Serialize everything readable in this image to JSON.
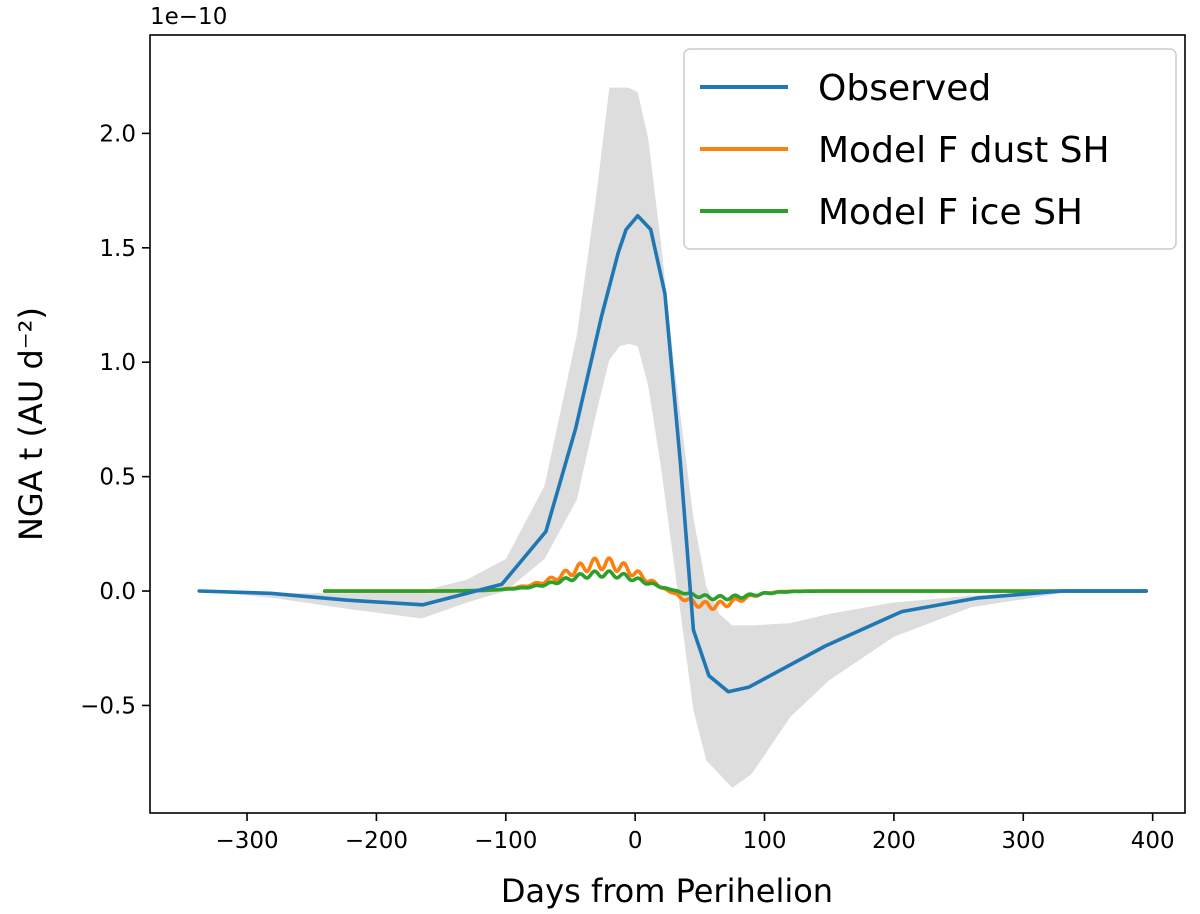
{
  "chart_data": {
    "type": "line",
    "title": "",
    "xlabel": "Days from Perihelion",
    "ylabel": "NGA t (AU d⁻²)",
    "y_offset_text": "1e−10",
    "xlim": [
      -375,
      425
    ],
    "ylim": [
      -0.97,
      2.43
    ],
    "x_ticks": [
      -300,
      -200,
      -100,
      0,
      100,
      200,
      300,
      400
    ],
    "x_tick_labels": [
      "−300",
      "−200",
      "−100",
      "0",
      "100",
      "200",
      "300",
      "400"
    ],
    "y_ticks": [
      -0.5,
      0.0,
      0.5,
      1.0,
      1.5,
      2.0
    ],
    "y_tick_labels": [
      "−0.5",
      "0.0",
      "0.5",
      "1.0",
      "1.5",
      "2.0"
    ],
    "legend_position": "top-right",
    "uncertainty_band": {
      "name": "Observed uncertainty",
      "color": "#dddddd",
      "x": [
        -335,
        -280,
        -220,
        -165,
        -130,
        -100,
        -70,
        -45,
        -30,
        -20,
        -12,
        -5,
        2,
        10,
        20,
        30,
        45,
        55,
        65,
        75,
        90,
        120,
        150,
        200,
        260,
        330,
        395
      ],
      "upper": [
        0.0,
        -0.01,
        -0.01,
        0.0,
        0.05,
        0.14,
        0.46,
        1.12,
        1.73,
        2.2,
        2.2,
        2.2,
        2.18,
        1.98,
        1.52,
        0.99,
        0.32,
        0.02,
        -0.1,
        -0.15,
        -0.15,
        -0.14,
        -0.1,
        -0.05,
        -0.02,
        0.0,
        0.0
      ],
      "lower": [
        0.0,
        -0.03,
        -0.08,
        -0.12,
        -0.05,
        0.0,
        0.14,
        0.4,
        0.78,
        1.01,
        1.07,
        1.08,
        1.07,
        0.9,
        0.54,
        0.12,
        -0.52,
        -0.74,
        -0.8,
        -0.86,
        -0.8,
        -0.55,
        -0.39,
        -0.2,
        -0.07,
        -0.01,
        0.0
      ]
    },
    "series": [
      {
        "name": "Observed",
        "color": "#1f77b4",
        "x": [
          -337,
          -282,
          -222,
          -164,
          -103,
          -69,
          -46,
          -26,
          -13,
          -7,
          2,
          12,
          23,
          35,
          45,
          57,
          72,
          88,
          147,
          206,
          265,
          330,
          395
        ],
        "y": [
          0.0,
          -0.01,
          -0.04,
          -0.06,
          0.03,
          0.26,
          0.71,
          1.2,
          1.48,
          1.58,
          1.64,
          1.58,
          1.3,
          0.56,
          -0.17,
          -0.37,
          -0.44,
          -0.42,
          -0.24,
          -0.09,
          -0.03,
          0.0,
          0.0
        ]
      },
      {
        "name": "Model F dust SH",
        "color": "#ff7f0e",
        "x_start": -240,
        "x_end": 395
      },
      {
        "name": "Model F ice SH",
        "color": "#2ca02c",
        "x_start": -240,
        "x_end": 395
      }
    ]
  }
}
